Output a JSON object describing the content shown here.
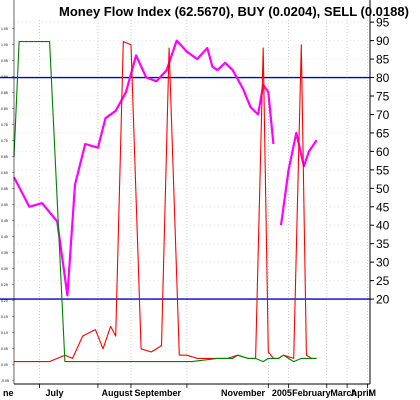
{
  "chart_data": {
    "type": "line",
    "title": "Money Flow Index (62.5670), BUY (0.0204), SELL (0.0188)",
    "x_labels": [
      "ne",
      "July",
      "August",
      "September",
      "November",
      "2005",
      "February",
      "March",
      "April",
      "M"
    ],
    "right_axis": {
      "ylim": [
        -3,
        101
      ],
      "ticks": [
        20,
        25,
        30,
        35,
        40,
        45,
        50,
        55,
        60,
        65,
        70,
        75,
        80,
        85,
        90,
        95
      ]
    },
    "left_axis": {
      "ylim": [
        -0.06,
        1.14
      ],
      "ticks": [
        "1.05",
        "1.00",
        "0.95",
        "0.90",
        "0.85",
        "0.80",
        "0.75",
        "0.70",
        "0.65",
        "0.60",
        "0.55",
        "0.50",
        "0.45",
        "0.40",
        "0.35",
        "0.30",
        "0.25",
        "0.20",
        "0.15",
        "0.10",
        "0.05",
        "0.00",
        "-0.05"
      ]
    },
    "reference_lines": [
      {
        "axis": "right",
        "value": 80,
        "color": "#0000cc"
      },
      {
        "axis": "right",
        "value": 20,
        "color": "#0000cc"
      }
    ],
    "series": [
      {
        "axis": "right",
        "color": "#ff00ff",
        "x": [
          0,
          6,
          11,
          17,
          21,
          24,
          28,
          33,
          36,
          40,
          44,
          48,
          52,
          56,
          60,
          64,
          68,
          72,
          76,
          78,
          80,
          83,
          86,
          90,
          93,
          96,
          98,
          100,
          102
        ],
        "y": [
          53,
          45,
          46,
          41,
          21,
          51,
          62,
          61,
          69,
          71,
          76,
          86,
          80,
          79,
          82,
          90,
          87,
          85,
          88,
          83,
          82,
          84,
          82,
          77,
          72,
          70,
          78,
          76,
          62
        ]
      },
      {
        "axis": "right",
        "color": "#ff00ff",
        "x": [
          105,
          108,
          111,
          114,
          116,
          119
        ],
        "y": [
          40,
          55,
          65,
          56,
          60,
          63
        ]
      },
      {
        "axis": "left",
        "color": "#ff0000",
        "x": [
          0,
          9,
          14,
          17,
          20,
          23,
          27,
          32,
          35,
          38,
          40,
          43,
          46,
          50,
          54,
          58,
          61,
          65,
          68,
          72,
          76,
          80,
          84,
          88,
          92,
          95,
          98,
          100,
          102,
          104,
          106,
          110,
          113,
          115,
          117,
          119
        ],
        "y": [
          0.01,
          0.01,
          0.01,
          0.02,
          0.03,
          0.02,
          0.09,
          0.11,
          0.05,
          0.12,
          0.09,
          1.01,
          1.0,
          0.05,
          0.04,
          0.06,
          0.99,
          0.03,
          0.03,
          0.02,
          0.02,
          0.02,
          0.02,
          0.03,
          0.02,
          0.02,
          0.99,
          0.04,
          0.02,
          0.02,
          0.03,
          0.02,
          1.0,
          0.03,
          0.02,
          0.02
        ]
      },
      {
        "axis": "left",
        "color": "#008000",
        "x": [
          0,
          2,
          6,
          14,
          20,
          22,
          30,
          40,
          50,
          60,
          70,
          80,
          86,
          88,
          92,
          95,
          98,
          100,
          104,
          106,
          110,
          113,
          119
        ],
        "y": [
          0.65,
          1.01,
          1.01,
          1.01,
          0.01,
          0.01,
          0.01,
          0.01,
          0.01,
          0.01,
          0.01,
          0.02,
          0.02,
          0.03,
          0.02,
          0.02,
          0.01,
          0.02,
          0.02,
          0.03,
          0.01,
          0.02,
          0.02
        ]
      }
    ]
  }
}
